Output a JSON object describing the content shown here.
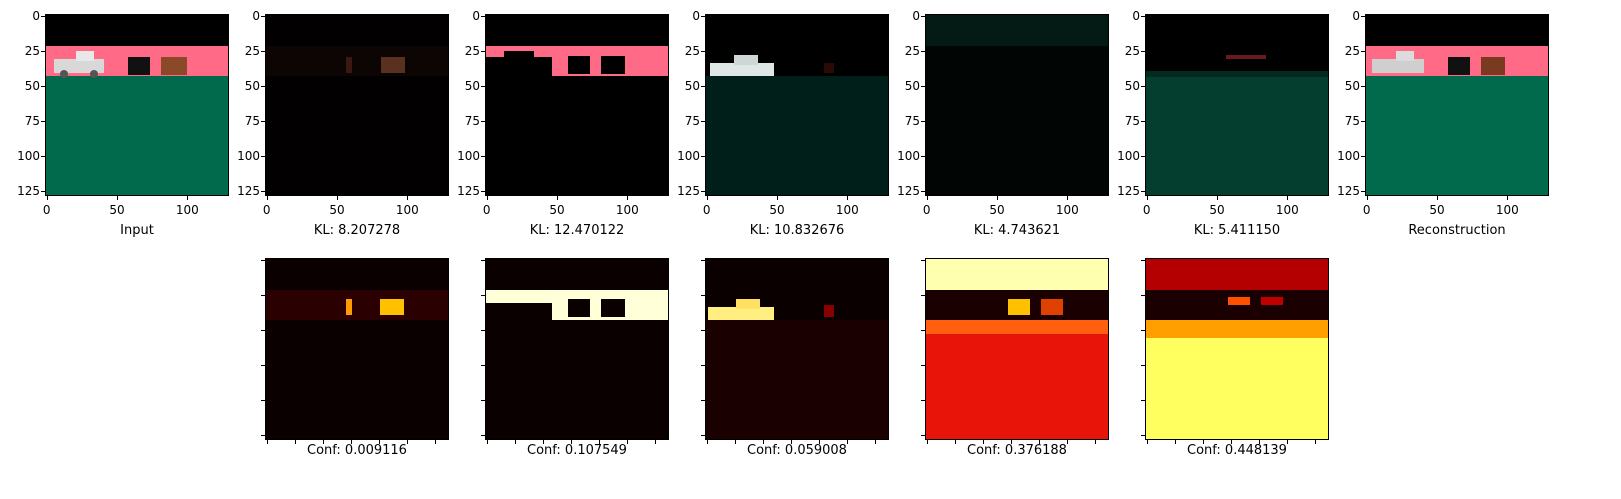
{
  "top_row": [
    {
      "caption": "Input"
    },
    {
      "caption": "KL: 8.207278"
    },
    {
      "caption": "KL: 12.470122"
    },
    {
      "caption": "KL: 10.832676"
    },
    {
      "caption": "KL: 4.743621"
    },
    {
      "caption": "KL: 5.411150"
    },
    {
      "caption": "Reconstruction"
    }
  ],
  "bottom_row": [
    {
      "caption": "Conf: 0.009116"
    },
    {
      "caption": "Conf: 0.107549"
    },
    {
      "caption": "Conf: 0.059008"
    },
    {
      "caption": "Conf: 0.376188"
    },
    {
      "caption": "Conf: 0.448139"
    }
  ],
  "axis": {
    "y_ticks": [
      "0",
      "25",
      "50",
      "75",
      "100",
      "125"
    ],
    "x_ticks": [
      "0",
      "50",
      "100"
    ]
  },
  "colors": {
    "sky_black": "#000000",
    "band_pink": "#ff6a86",
    "ground_green": "#016a4d",
    "heat_low": "#0a0000",
    "heat_high": "#ffffd8"
  }
}
